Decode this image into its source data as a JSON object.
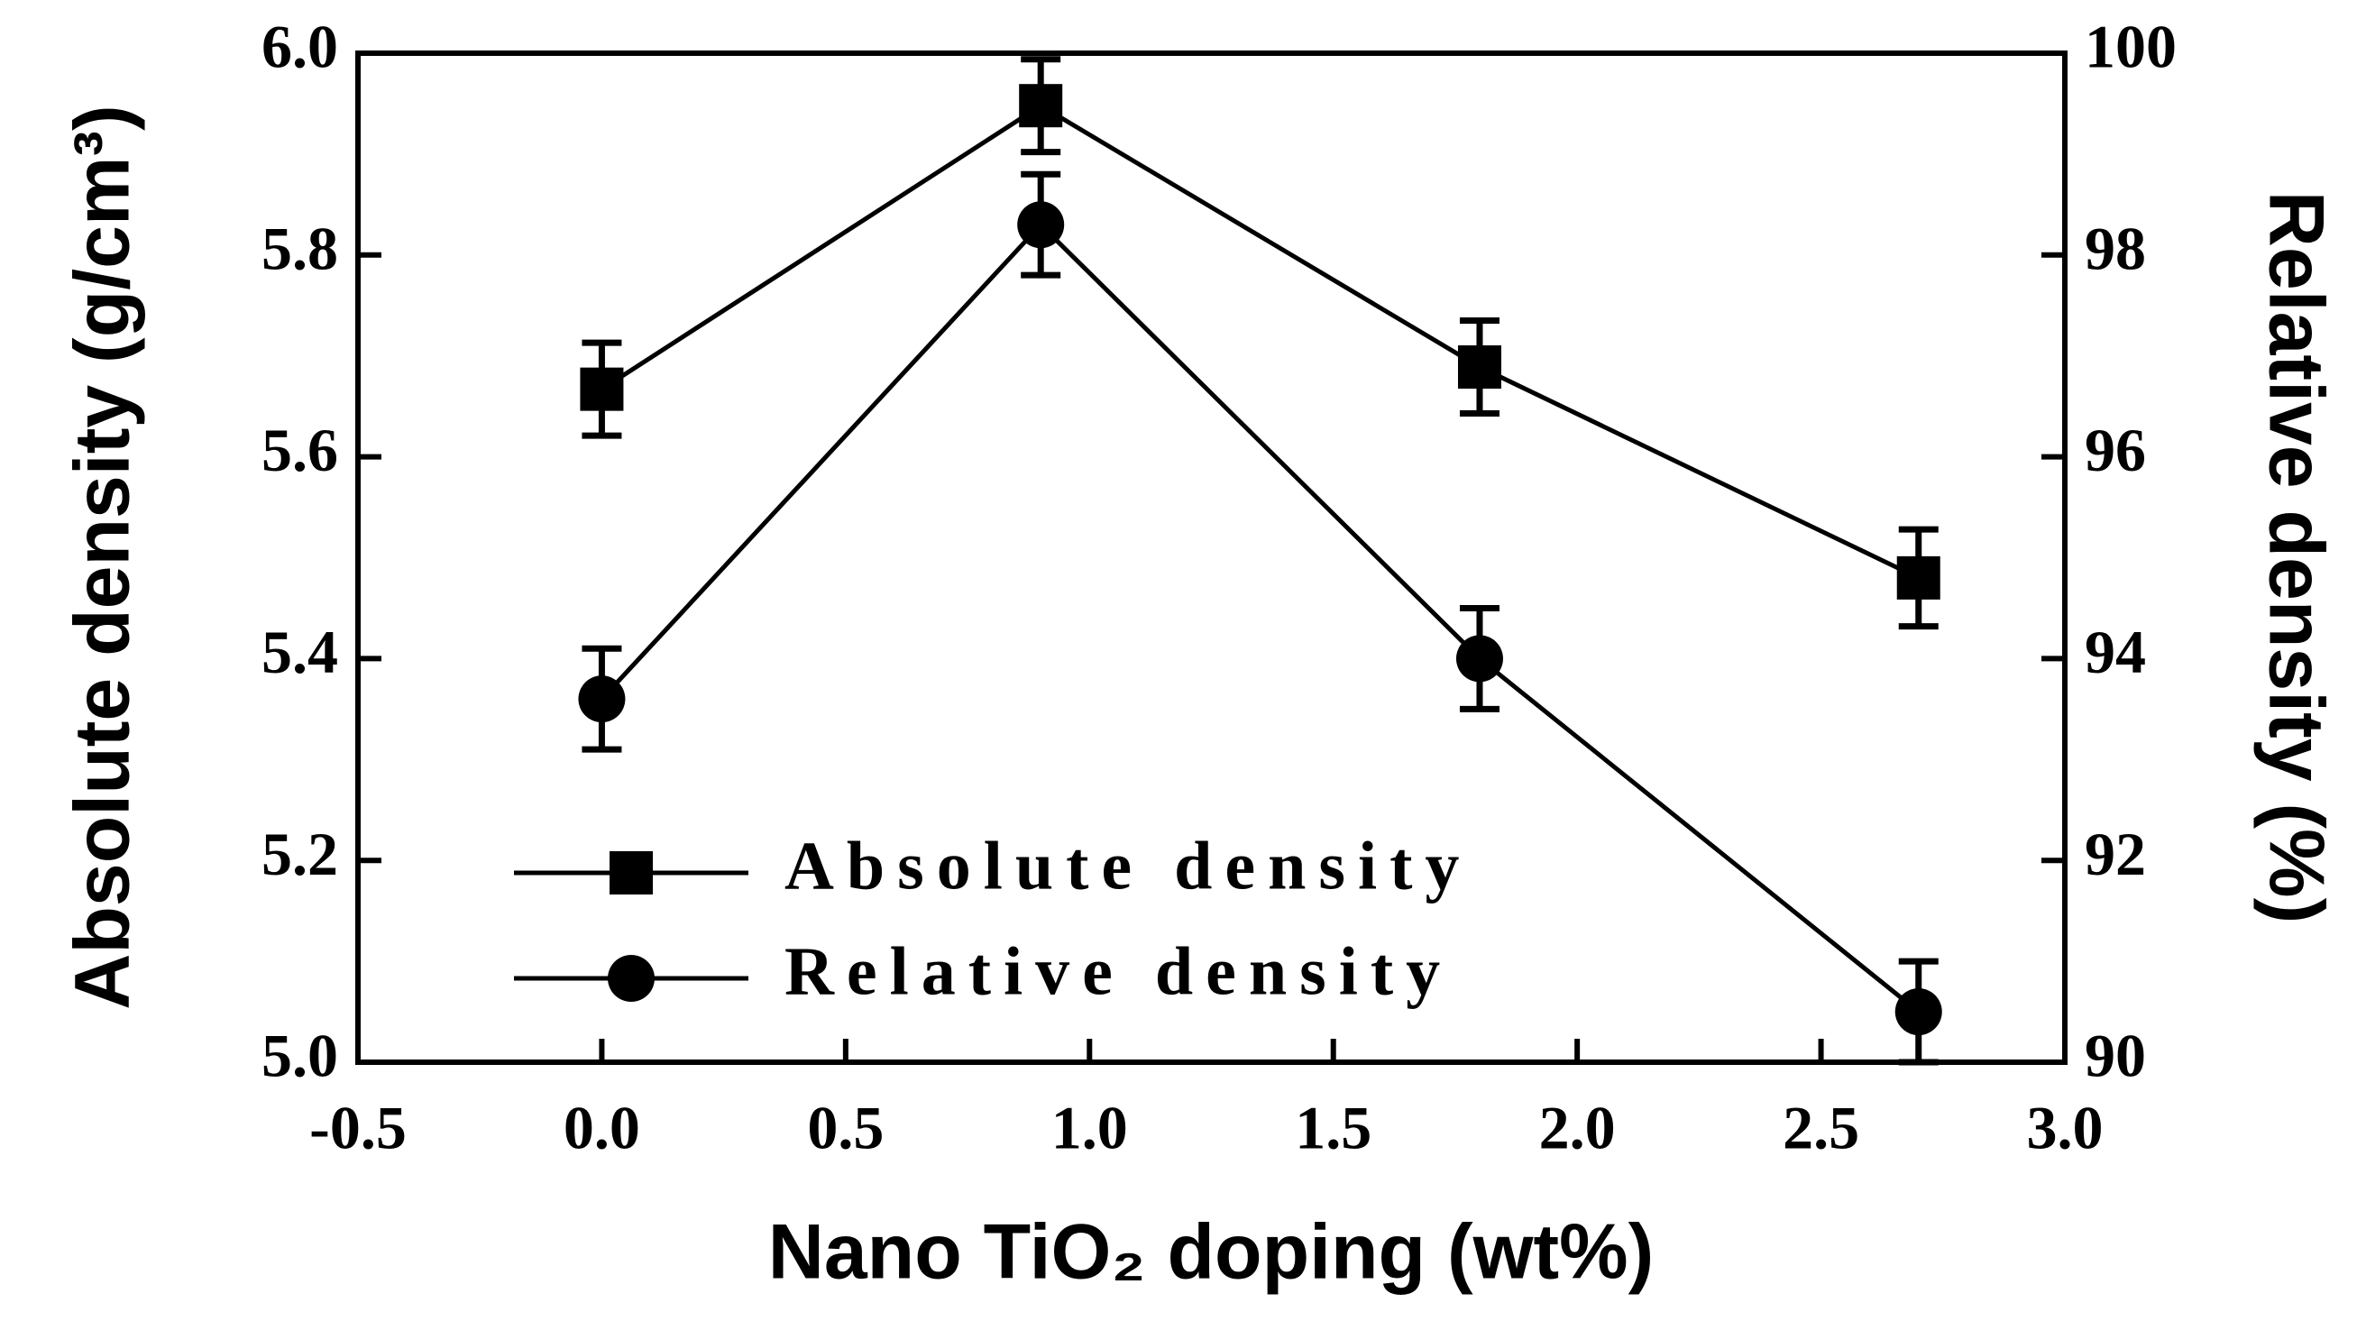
{
  "chart_data": {
    "type": "line",
    "xlabel": "Nano TiO₂ doping (wt%)",
    "ylabel": "Absolute density (g/cm³)",
    "y2label": "Relative density (%)",
    "x": [
      0,
      0.9,
      1.8,
      2.7
    ],
    "series": [
      {
        "name": "Absolute density",
        "color": "#000000",
        "marker": "square",
        "axis": "y",
        "values": [
          5.667,
          5.948,
          5.689,
          5.48
        ],
        "errors": [
          0.046,
          0.046,
          0.046,
          0.048
        ]
      },
      {
        "name": "Relative density",
        "color": "#000000",
        "marker": "circle",
        "axis": "y2",
        "values": [
          93.6,
          98.3,
          94.0,
          90.5
        ],
        "errors": [
          0.5,
          0.5,
          0.5,
          0.5
        ]
      }
    ],
    "xlim": [
      -0.5,
      3.0
    ],
    "xticks": [
      -0.5,
      {
        "value": 0,
        "label": "0.0"
      },
      0.5,
      {
        "value": 1,
        "label": "1.0"
      },
      1.5,
      {
        "value": 2,
        "label": "2.0"
      },
      2.5,
      {
        "value": 3,
        "label": "3.0"
      }
    ],
    "ylim": [
      5.0,
      6.0
    ],
    "yticks": [
      {
        "value": 5,
        "label": "5.0"
      },
      5.2,
      5.4,
      5.6,
      5.8,
      {
        "value": 6,
        "label": "6.0"
      }
    ],
    "y2lim": [
      90,
      100
    ],
    "y2ticks": [
      90,
      92,
      94,
      96,
      98,
      100
    ],
    "grid": false,
    "legend": "lower left"
  }
}
